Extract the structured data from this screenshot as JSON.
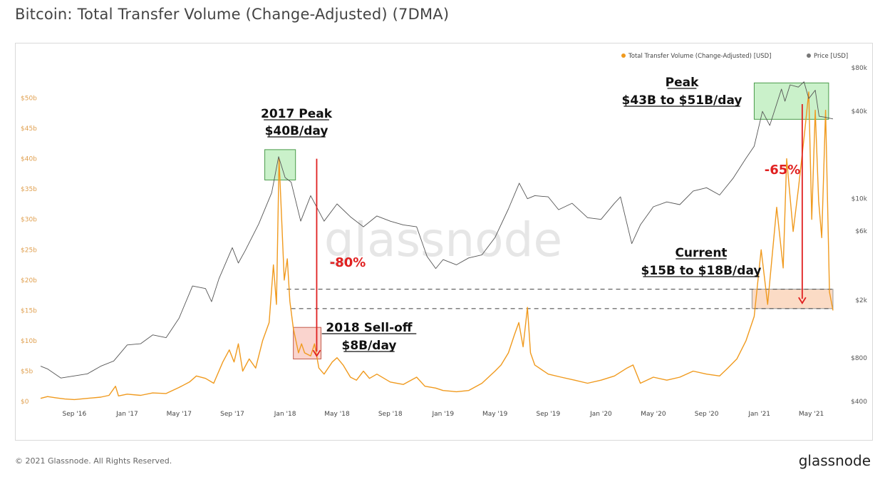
{
  "page": {
    "title": "Bitcoin: Total Transfer Volume (Change-Adjusted) (7DMA)",
    "footer_copyright": "© 2021 Glassnode. All Rights Reserved.",
    "footer_brand": "glassnode",
    "watermark": "glassnode"
  },
  "colors": {
    "volume": "#f09a1e",
    "price": "#555555",
    "green_box_fill": "#b8ecb8",
    "green_box_stroke": "#4a9a4a",
    "red_box_fill": "#f8c6bd",
    "red_box_stroke": "#c25a4a",
    "orange_box_fill": "#f9cfb2",
    "arrow": "#e02020",
    "left_axis_text": "#e0a050",
    "right_axis_text": "#555555"
  },
  "chart_data": {
    "type": "line",
    "title": "Bitcoin: Total Transfer Volume (Change-Adjusted) (7DMA)",
    "legend": {
      "position": "top-right",
      "items": [
        {
          "label": "Total Transfer Volume (Change-Adjusted) [USD]",
          "color": "#f09a1e",
          "marker": "●"
        },
        {
          "label": "Price [USD]",
          "color": "#777777",
          "marker": "●"
        }
      ]
    },
    "x_axis": {
      "range": [
        "2016-06-15",
        "2021-06-25"
      ],
      "ticks": [
        {
          "date": "2016-09-01",
          "label": "Sep '16"
        },
        {
          "date": "2017-01-01",
          "label": "Jan '17"
        },
        {
          "date": "2017-05-01",
          "label": "May '17"
        },
        {
          "date": "2017-09-01",
          "label": "Sep '17"
        },
        {
          "date": "2018-01-01",
          "label": "Jan '18"
        },
        {
          "date": "2018-05-01",
          "label": "May '18"
        },
        {
          "date": "2018-09-01",
          "label": "Sep '18"
        },
        {
          "date": "2019-01-01",
          "label": "Jan '19"
        },
        {
          "date": "2019-05-01",
          "label": "May '19"
        },
        {
          "date": "2019-09-01",
          "label": "Sep '19"
        },
        {
          "date": "2020-01-01",
          "label": "Jan '20"
        },
        {
          "date": "2020-05-01",
          "label": "May '20"
        },
        {
          "date": "2020-09-01",
          "label": "Sep '20"
        },
        {
          "date": "2021-01-01",
          "label": "Jan '21"
        },
        {
          "date": "2021-05-01",
          "label": "May '21"
        }
      ]
    },
    "left_axis": {
      "unit": "USD billions",
      "range": [
        0,
        55
      ],
      "ticks": [
        {
          "value": 0,
          "label": "$0"
        },
        {
          "value": 5,
          "label": "$5b"
        },
        {
          "value": 10,
          "label": "$10b"
        },
        {
          "value": 15,
          "label": "$15b"
        },
        {
          "value": 20,
          "label": "$20b"
        },
        {
          "value": 25,
          "label": "$25b"
        },
        {
          "value": 30,
          "label": "$30b"
        },
        {
          "value": 35,
          "label": "$35b"
        },
        {
          "value": 40,
          "label": "$40b"
        },
        {
          "value": 45,
          "label": "$45b"
        },
        {
          "value": 50,
          "label": "$50b"
        }
      ]
    },
    "right_axis": {
      "scale": "log",
      "range": [
        400,
        80000
      ],
      "ticks": [
        {
          "value": 400,
          "label": "$400"
        },
        {
          "value": 800,
          "label": "$800"
        },
        {
          "value": 2000,
          "label": "$2k"
        },
        {
          "value": 6000,
          "label": "$6k"
        },
        {
          "value": 10000,
          "label": "$10k"
        },
        {
          "value": 40000,
          "label": "$40k"
        },
        {
          "value": 80000,
          "label": "$80k"
        }
      ]
    },
    "grid": false,
    "series": [
      {
        "name": "Total Transfer Volume (Change-Adjusted) [USD]",
        "axis": "left",
        "color": "#f09a1e",
        "points": [
          [
            "2016-06-15",
            0.5
          ],
          [
            "2016-07-01",
            0.8
          ],
          [
            "2016-07-20",
            0.6
          ],
          [
            "2016-08-10",
            0.4
          ],
          [
            "2016-09-01",
            0.3
          ],
          [
            "2016-10-01",
            0.5
          ],
          [
            "2016-11-01",
            0.7
          ],
          [
            "2016-11-20",
            1.0
          ],
          [
            "2016-12-05",
            2.5
          ],
          [
            "2016-12-12",
            0.9
          ],
          [
            "2017-01-01",
            1.2
          ],
          [
            "2017-02-01",
            1.0
          ],
          [
            "2017-03-01",
            1.4
          ],
          [
            "2017-04-01",
            1.3
          ],
          [
            "2017-05-01",
            2.3
          ],
          [
            "2017-05-25",
            3.2
          ],
          [
            "2017-06-10",
            4.2
          ],
          [
            "2017-07-01",
            3.8
          ],
          [
            "2017-07-20",
            3.0
          ],
          [
            "2017-08-10",
            6.5
          ],
          [
            "2017-08-25",
            8.5
          ],
          [
            "2017-09-05",
            6.5
          ],
          [
            "2017-09-15",
            9.5
          ],
          [
            "2017-09-25",
            5.0
          ],
          [
            "2017-10-10",
            7.0
          ],
          [
            "2017-10-25",
            5.5
          ],
          [
            "2017-11-10",
            10.0
          ],
          [
            "2017-11-25",
            13.0
          ],
          [
            "2017-12-05",
            22.5
          ],
          [
            "2017-12-12",
            16.0
          ],
          [
            "2017-12-18",
            40.0
          ],
          [
            "2017-12-24",
            30.0
          ],
          [
            "2017-12-30",
            20.0
          ],
          [
            "2018-01-06",
            23.5
          ],
          [
            "2018-01-12",
            16.5
          ],
          [
            "2018-01-20",
            12.0
          ],
          [
            "2018-02-01",
            8.0
          ],
          [
            "2018-02-08",
            9.5
          ],
          [
            "2018-02-15",
            8.0
          ],
          [
            "2018-03-01",
            7.5
          ],
          [
            "2018-03-10",
            9.5
          ],
          [
            "2018-03-20",
            5.5
          ],
          [
            "2018-04-01",
            4.5
          ],
          [
            "2018-04-20",
            6.5
          ],
          [
            "2018-05-01",
            7.2
          ],
          [
            "2018-05-15",
            6.0
          ],
          [
            "2018-06-01",
            4.0
          ],
          [
            "2018-06-15",
            3.5
          ],
          [
            "2018-07-01",
            5.0
          ],
          [
            "2018-07-15",
            3.8
          ],
          [
            "2018-08-01",
            4.5
          ],
          [
            "2018-09-01",
            3.2
          ],
          [
            "2018-10-01",
            2.8
          ],
          [
            "2018-11-01",
            4.0
          ],
          [
            "2018-11-20",
            2.5
          ],
          [
            "2018-12-15",
            2.2
          ],
          [
            "2019-01-01",
            1.8
          ],
          [
            "2019-02-01",
            1.6
          ],
          [
            "2019-03-01",
            1.8
          ],
          [
            "2019-04-01",
            3.0
          ],
          [
            "2019-05-01",
            5.0
          ],
          [
            "2019-05-15",
            6.0
          ],
          [
            "2019-06-01",
            8.0
          ],
          [
            "2019-06-15",
            11.0
          ],
          [
            "2019-06-25",
            13.0
          ],
          [
            "2019-07-05",
            9.0
          ],
          [
            "2019-07-15",
            15.5
          ],
          [
            "2019-07-22",
            8.0
          ],
          [
            "2019-08-01",
            6.0
          ],
          [
            "2019-09-01",
            4.5
          ],
          [
            "2019-10-01",
            4.0
          ],
          [
            "2019-11-01",
            3.5
          ],
          [
            "2019-12-01",
            3.0
          ],
          [
            "2020-01-01",
            3.5
          ],
          [
            "2020-02-01",
            4.2
          ],
          [
            "2020-03-01",
            5.5
          ],
          [
            "2020-03-15",
            6.0
          ],
          [
            "2020-04-01",
            3.0
          ],
          [
            "2020-05-01",
            4.0
          ],
          [
            "2020-06-01",
            3.5
          ],
          [
            "2020-07-01",
            4.0
          ],
          [
            "2020-08-01",
            5.0
          ],
          [
            "2020-09-01",
            4.5
          ],
          [
            "2020-10-01",
            4.2
          ],
          [
            "2020-10-20",
            5.5
          ],
          [
            "2020-11-10",
            7.0
          ],
          [
            "2020-12-01",
            10.0
          ],
          [
            "2020-12-20",
            14.0
          ],
          [
            "2021-01-05",
            25.0
          ],
          [
            "2021-01-20",
            16.0
          ],
          [
            "2021-02-10",
            32.0
          ],
          [
            "2021-02-25",
            22.0
          ],
          [
            "2021-03-05",
            40.0
          ],
          [
            "2021-03-20",
            28.0
          ],
          [
            "2021-04-01",
            35.0
          ],
          [
            "2021-04-15",
            44.0
          ],
          [
            "2021-04-25",
            51.0
          ],
          [
            "2021-05-02",
            30.0
          ],
          [
            "2021-05-10",
            48.0
          ],
          [
            "2021-05-18",
            33.0
          ],
          [
            "2021-05-25",
            27.0
          ],
          [
            "2021-06-03",
            48.0
          ],
          [
            "2021-06-12",
            18.0
          ],
          [
            "2021-06-20",
            15.0
          ]
        ]
      },
      {
        "name": "Price [USD]",
        "axis": "right",
        "color": "#555555",
        "points": [
          [
            "2016-06-15",
            700
          ],
          [
            "2016-07-01",
            670
          ],
          [
            "2016-08-01",
            580
          ],
          [
            "2016-09-01",
            600
          ],
          [
            "2016-10-01",
            620
          ],
          [
            "2016-11-01",
            700
          ],
          [
            "2016-12-01",
            760
          ],
          [
            "2017-01-01",
            980
          ],
          [
            "2017-02-01",
            1000
          ],
          [
            "2017-03-01",
            1150
          ],
          [
            "2017-04-01",
            1100
          ],
          [
            "2017-05-01",
            1500
          ],
          [
            "2017-06-01",
            2500
          ],
          [
            "2017-07-01",
            2400
          ],
          [
            "2017-07-15",
            1950
          ],
          [
            "2017-08-01",
            2800
          ],
          [
            "2017-09-01",
            4600
          ],
          [
            "2017-09-15",
            3600
          ],
          [
            "2017-10-01",
            4400
          ],
          [
            "2017-11-01",
            6700
          ],
          [
            "2017-12-01",
            11000
          ],
          [
            "2017-12-17",
            19500
          ],
          [
            "2018-01-01",
            14000
          ],
          [
            "2018-01-15",
            13000
          ],
          [
            "2018-02-06",
            7000
          ],
          [
            "2018-03-01",
            10500
          ],
          [
            "2018-04-01",
            7000
          ],
          [
            "2018-05-01",
            9200
          ],
          [
            "2018-06-01",
            7500
          ],
          [
            "2018-07-01",
            6400
          ],
          [
            "2018-08-01",
            7600
          ],
          [
            "2018-09-01",
            7000
          ],
          [
            "2018-10-01",
            6600
          ],
          [
            "2018-11-01",
            6400
          ],
          [
            "2018-11-25",
            4000
          ],
          [
            "2018-12-15",
            3300
          ],
          [
            "2019-01-01",
            3800
          ],
          [
            "2019-02-01",
            3500
          ],
          [
            "2019-03-01",
            3900
          ],
          [
            "2019-04-01",
            4100
          ],
          [
            "2019-05-01",
            5400
          ],
          [
            "2019-06-01",
            8500
          ],
          [
            "2019-06-26",
            12800
          ],
          [
            "2019-07-15",
            10000
          ],
          [
            "2019-08-01",
            10500
          ],
          [
            "2019-09-01",
            10300
          ],
          [
            "2019-09-25",
            8400
          ],
          [
            "2019-10-26",
            9300
          ],
          [
            "2019-12-01",
            7400
          ],
          [
            "2020-01-01",
            7200
          ],
          [
            "2020-02-01",
            9300
          ],
          [
            "2020-02-15",
            10300
          ],
          [
            "2020-03-12",
            4900
          ],
          [
            "2020-04-01",
            6600
          ],
          [
            "2020-05-01",
            8800
          ],
          [
            "2020-06-01",
            9500
          ],
          [
            "2020-07-01",
            9100
          ],
          [
            "2020-08-01",
            11300
          ],
          [
            "2020-09-01",
            11900
          ],
          [
            "2020-10-01",
            10600
          ],
          [
            "2020-11-01",
            13800
          ],
          [
            "2020-12-01",
            19000
          ],
          [
            "2020-12-20",
            23000
          ],
          [
            "2021-01-08",
            40000
          ],
          [
            "2021-01-25",
            32000
          ],
          [
            "2021-02-21",
            57000
          ],
          [
            "2021-03-01",
            47000
          ],
          [
            "2021-03-13",
            61000
          ],
          [
            "2021-04-01",
            58800
          ],
          [
            "2021-04-14",
            64000
          ],
          [
            "2021-04-25",
            49000
          ],
          [
            "2021-05-10",
            56000
          ],
          [
            "2021-05-19",
            37000
          ],
          [
            "2021-06-01",
            36500
          ],
          [
            "2021-06-20",
            35500
          ]
        ]
      }
    ],
    "annotations": [
      {
        "id": "peak-2017",
        "lines": [
          "2017 Peak",
          "$40B/day"
        ],
        "underline": true
      },
      {
        "id": "selloff-2018",
        "lines": [
          "2018 Sell-off",
          "$8B/day"
        ],
        "underline": true
      },
      {
        "id": "peak-2021",
        "lines": [
          "Peak",
          "$43B to $51B/day"
        ],
        "underline": true
      },
      {
        "id": "current-2021",
        "lines": [
          "Current",
          "$15B to $18B/day"
        ],
        "underline": true
      },
      {
        "id": "pct-2018",
        "text": "-80%",
        "color": "#e02020"
      },
      {
        "id": "pct-2021",
        "text": "-65%",
        "color": "#e02020"
      }
    ],
    "reference_lines": [
      {
        "value": 18.5,
        "style": "dashed"
      },
      {
        "value": 15.3,
        "style": "dashed"
      }
    ]
  }
}
